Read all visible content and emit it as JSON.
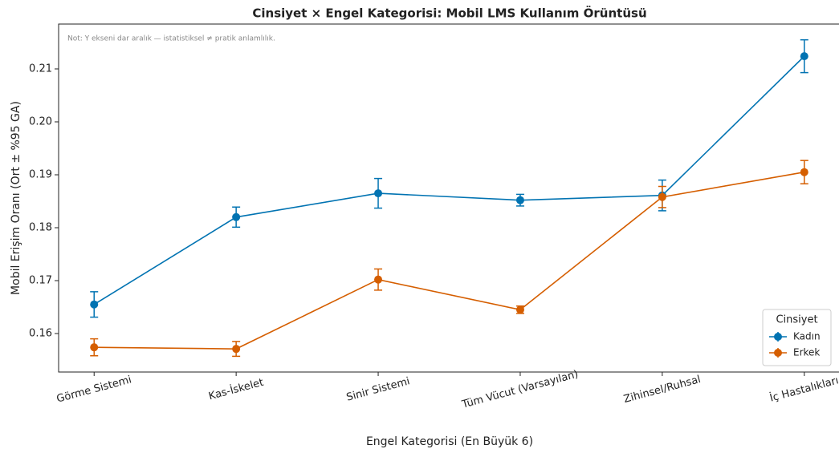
{
  "chart_data": {
    "type": "line",
    "title": "Cinsiyet × Engel Kategorisi: Mobil LMS Kullanım Örüntüsü",
    "annotation": "Not: Y ekseni dar aralık — istatistiksel ≠ pratik anlamlılık.",
    "x_label": "Engel Kategorisi (En Büyük 6)",
    "y_label": "Mobil Erişim Oranı (Ort ± %95 GA)",
    "categories": [
      "Görme Sistemi",
      "Kas-İskelet",
      "Sinir Sistemi",
      "Tüm Vücut (Varsayılan)",
      "Zihinsel/Ruhsal",
      "İç Hastalıkları"
    ],
    "series": [
      {
        "name": "Kadın",
        "color": "#0173b2",
        "values": [
          0.1655,
          0.182,
          0.1865,
          0.1852,
          0.1861,
          0.2124
        ],
        "errors": [
          0.0024,
          0.0019,
          0.0028,
          0.0011,
          0.0029,
          0.0031
        ]
      },
      {
        "name": "Erkek",
        "color": "#d55e00",
        "values": [
          0.1574,
          0.1571,
          0.1702,
          0.1645,
          0.1858,
          0.1905
        ],
        "errors": [
          0.0016,
          0.0014,
          0.002,
          0.0007,
          0.002,
          0.0022
        ]
      }
    ],
    "ylim": [
      0.15273,
      0.21848
    ],
    "yticks": [
      0.16,
      0.17,
      0.18,
      0.19,
      {
        "value": 0.2,
        "label": "0.20"
      },
      0.21
    ],
    "legend_title": "Cinsiyet",
    "legend_position": "lower right"
  }
}
